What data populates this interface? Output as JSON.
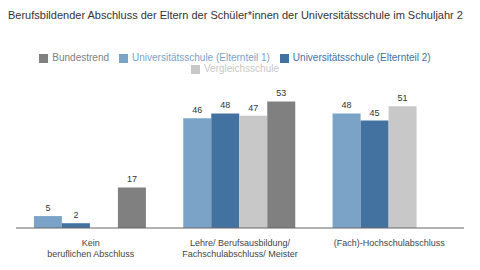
{
  "chart_data": {
    "type": "bar",
    "title": "Berufsbildender Abschluss der Eltern der Schüler*innen der Universitätsschule im Schuljahr 2",
    "categories": [
      "Kein\nberuflichen Abschluss",
      "Lehre/ Berufsausbildung/\nFachschulabschluss/ Meister",
      "(Fach)-Hochschulabschluss"
    ],
    "series": [
      {
        "name": "Universitätsschule (Elternteil 1)",
        "color": "#7ba3c8",
        "values": [
          5,
          46,
          48
        ]
      },
      {
        "name": "Universitätsschule (Elternteil 2)",
        "color": "#4472a0",
        "values": [
          2,
          48,
          45
        ]
      },
      {
        "name": "Vergleichsschule",
        "color": "#c8c8c8",
        "values": [
          null,
          47,
          51
        ]
      },
      {
        "name": "Bundestrend",
        "color": "#808080",
        "values": [
          17,
          53,
          null
        ]
      }
    ],
    "ylim": [
      0,
      62
    ],
    "grid": false,
    "legend": "top",
    "data_labels": true,
    "tick_labels": "x"
  }
}
